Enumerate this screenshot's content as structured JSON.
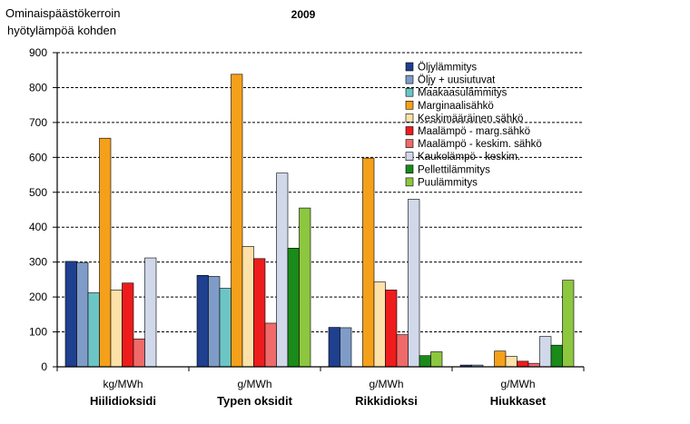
{
  "chart_data": {
    "type": "bar",
    "title": "2009",
    "ylabel_lines": [
      "Ominaispäästökerroin",
      "hyötylämpöä kohden"
    ],
    "ylim": [
      0,
      900
    ],
    "yticks": [
      0,
      100,
      200,
      300,
      400,
      500,
      600,
      700,
      800,
      900
    ],
    "grid": "horizontal dashed",
    "legend_position": "top-right",
    "categories": [
      {
        "unit": "kg/MWh",
        "name": "Hiilidioksidi"
      },
      {
        "unit": "g/MWh",
        "name": "Typen oksidit"
      },
      {
        "unit": "g/MWh",
        "name": "Rikkidioksi"
      },
      {
        "unit": "g/MWh",
        "name": "Hiukkaset"
      }
    ],
    "series": [
      {
        "name": "Öljylämmitys",
        "color": "#1f3f8f",
        "values": [
          302,
          262,
          113,
          5
        ]
      },
      {
        "name": "Öljy + uusiutuvat",
        "color": "#7f9cc9",
        "values": [
          299,
          259,
          112,
          5
        ]
      },
      {
        "name": "Maakaasulämmitys",
        "color": "#6cc5c5",
        "values": [
          212,
          225,
          null,
          null
        ]
      },
      {
        "name": "Marginaalisähkö",
        "color": "#f5a01a",
        "values": [
          655,
          838,
          598,
          45
        ]
      },
      {
        "name": "Keskimääräinen sähkö",
        "color": "#fde1a8",
        "values": [
          220,
          345,
          243,
          30
        ]
      },
      {
        "name": "Maalämpö - marg.sähkö",
        "color": "#ee1c1c",
        "values": [
          240,
          310,
          220,
          16
        ]
      },
      {
        "name": "Maalämpö - keskim. sähkö",
        "color": "#f06a6a",
        "values": [
          80,
          125,
          92,
          10
        ]
      },
      {
        "name": "Kaukolämpö - keskim.",
        "color": "#d0d8ea",
        "values": [
          312,
          555,
          480,
          87
        ]
      },
      {
        "name": "Pellettilämmitys",
        "color": "#1a8a1a",
        "values": [
          null,
          340,
          32,
          62
        ]
      },
      {
        "name": "Puulämmitys",
        "color": "#8dc63f",
        "values": [
          null,
          455,
          43,
          248
        ]
      }
    ]
  }
}
